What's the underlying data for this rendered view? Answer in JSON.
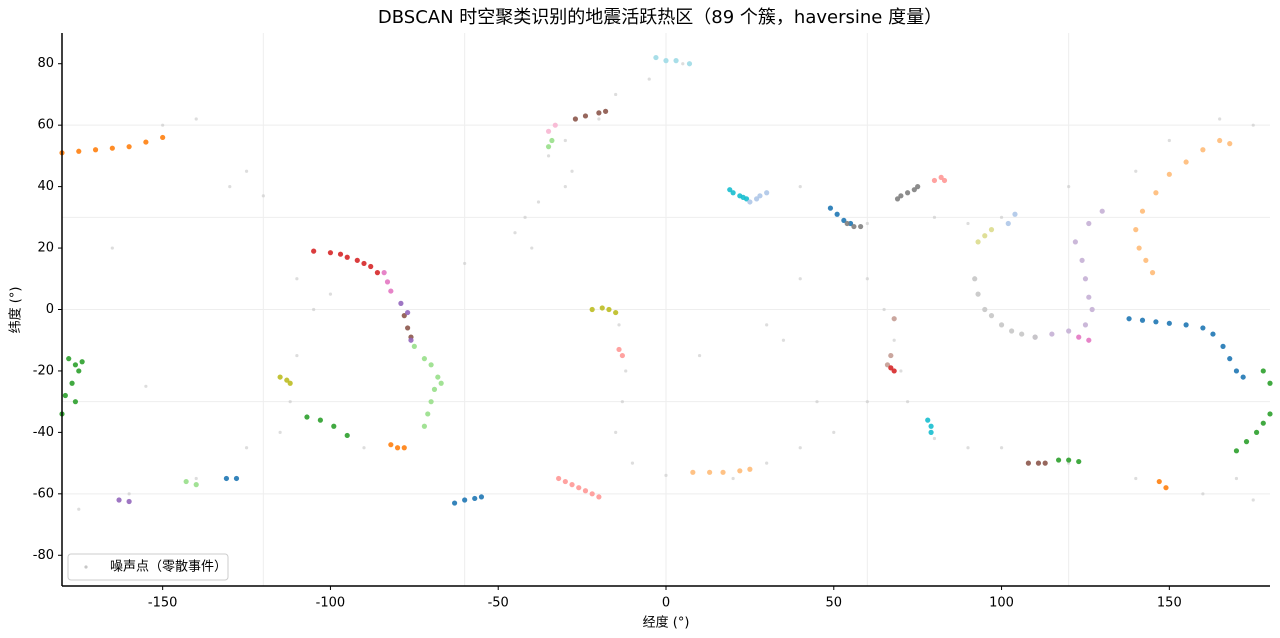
{
  "chart_data": {
    "type": "scatter",
    "title": "DBSCAN 时空聚类识别的地震活跃热区（89 个簇，haversine 度量）",
    "x_label": "经度 (°)",
    "y_label": "纬度 (°)",
    "xlim": [
      -180,
      180
    ],
    "ylim": [
      -90,
      90
    ],
    "xticks": [
      -150,
      -100,
      -50,
      0,
      50,
      100,
      150
    ],
    "yticks": [
      -80,
      -60,
      -40,
      -20,
      0,
      20,
      40,
      60,
      80
    ],
    "xgrid": [
      -120,
      -60,
      0,
      60,
      120
    ],
    "ygrid": [
      -60,
      -30,
      0,
      30,
      60
    ],
    "legend": "lower left",
    "series": [
      {
        "name": "噪声点（零散事件）",
        "color": "#c7c7c7",
        "x": [
          -40,
          -45,
          -42,
          -38,
          -30,
          -28,
          -35,
          -30,
          -20,
          -15,
          -5,
          5,
          -14,
          -12,
          -13,
          -15,
          -10,
          0,
          20,
          -110,
          -105,
          -110,
          -112,
          -115,
          -125,
          -140,
          -160,
          -175,
          -130,
          -125,
          -150,
          -140,
          -120,
          60,
          65,
          68,
          70,
          72,
          80,
          90,
          100,
          120,
          140,
          160,
          170,
          60,
          50,
          40,
          30,
          100,
          90,
          80,
          60,
          40,
          120,
          140,
          150,
          165,
          175,
          30,
          35,
          40,
          175,
          -90,
          -100,
          -165,
          -155,
          45,
          10,
          -60
        ],
        "y": [
          20,
          25,
          30,
          35,
          40,
          45,
          50,
          55,
          62,
          70,
          75,
          80,
          -5,
          -20,
          -30,
          -40,
          -50,
          -54,
          -55,
          10,
          0,
          -15,
          -30,
          -40,
          -45,
          -55,
          -60,
          -65,
          40,
          45,
          60,
          62,
          37,
          10,
          0,
          -10,
          -20,
          -30,
          -42,
          -45,
          -45,
          -50,
          -55,
          -60,
          -55,
          -30,
          -40,
          -45,
          -50,
          30,
          28,
          30,
          28,
          40,
          40,
          45,
          55,
          62,
          60,
          -5,
          -10,
          10,
          -62,
          -45,
          5,
          20,
          -25,
          -30,
          -15,
          15
        ]
      },
      {
        "color": "#ff7f0e",
        "x": [
          -180,
          -175,
          -170,
          -165,
          -160,
          -155,
          -150
        ],
        "y": [
          51,
          51.5,
          52,
          52.5,
          53,
          54.5,
          56
        ]
      },
      {
        "color": "#2ca02c",
        "x": [
          -178,
          -176,
          -175,
          -177,
          -179,
          -174,
          -180,
          -176
        ],
        "y": [
          -16,
          -18,
          -20,
          -24,
          -28,
          -17,
          -34,
          -30
        ]
      },
      {
        "color": "#d62728",
        "x": [
          -105,
          -100,
          -97,
          -95,
          -92,
          -90,
          -88,
          -86
        ],
        "y": [
          19,
          18.5,
          18,
          17,
          16,
          15,
          14,
          12
        ]
      },
      {
        "color": "#98df8a",
        "x": [
          -75,
          -72,
          -70,
          -68,
          -69,
          -70,
          -71,
          -72,
          -67
        ],
        "y": [
          -12,
          -16,
          -18,
          -22,
          -26,
          -30,
          -34,
          -38,
          -24
        ]
      },
      {
        "color": "#1f77b4",
        "x": [
          138,
          142,
          146,
          150,
          155,
          160,
          163,
          166,
          168,
          170,
          172
        ],
        "y": [
          -3,
          -3.5,
          -4,
          -4.5,
          -5,
          -6,
          -8,
          -12,
          -16,
          -20,
          -22
        ]
      },
      {
        "color": "#ffbb78",
        "x": [
          145,
          143,
          141,
          140,
          142,
          146,
          150,
          155,
          160,
          165,
          168
        ],
        "y": [
          12,
          16,
          20,
          26,
          32,
          38,
          44,
          48,
          52,
          55,
          54
        ]
      },
      {
        "color": "#c5b0d5",
        "x": [
          130,
          126,
          122,
          124,
          125,
          126,
          127,
          125,
          120,
          115,
          110
        ],
        "y": [
          32,
          28,
          22,
          16,
          10,
          4,
          0,
          -5,
          -7,
          -8,
          -9
        ]
      },
      {
        "color": "#c7c7c7",
        "x": [
          92,
          93,
          95,
          97,
          100,
          103,
          106,
          110
        ],
        "y": [
          10,
          5,
          0,
          -2,
          -5,
          -7,
          -8,
          -9
        ]
      },
      {
        "color": "#7f7f7f",
        "x": [
          69,
          70,
          72,
          74,
          75
        ],
        "y": [
          36,
          37,
          38,
          39,
          40
        ]
      },
      {
        "color": "#17becf",
        "x": [
          19,
          20,
          22,
          23,
          24
        ],
        "y": [
          39,
          38,
          37,
          36.5,
          36
        ]
      },
      {
        "color": "#aec7e8",
        "x": [
          25,
          27,
          28,
          30
        ],
        "y": [
          35,
          36,
          37,
          38
        ]
      },
      {
        "color": "#1f77b4",
        "x": [
          49,
          51,
          53,
          55
        ],
        "y": [
          33,
          31,
          29,
          28
        ]
      },
      {
        "color": "#7f7f7f",
        "x": [
          54,
          56,
          58
        ],
        "y": [
          28,
          27,
          27
        ]
      },
      {
        "color": "#ff9896",
        "x": [
          -32,
          -30,
          -28,
          -26,
          -24,
          -22,
          -20
        ],
        "y": [
          -55,
          -56,
          -57,
          -58,
          -59,
          -60,
          -61
        ]
      },
      {
        "color": "#1f77b4",
        "x": [
          -63,
          -60,
          -57,
          -55
        ],
        "y": [
          -63,
          -62,
          -61.5,
          -61
        ]
      },
      {
        "color": "#2ca02c",
        "x": [
          170,
          173,
          176,
          178,
          180
        ],
        "y": [
          -46,
          -43,
          -40,
          -37,
          -34
        ]
      },
      {
        "color": "#2ca02c",
        "x": [
          178,
          180
        ],
        "y": [
          -20,
          -24
        ]
      },
      {
        "color": "#8c564b",
        "x": [
          108,
          111,
          113
        ],
        "y": [
          -50,
          -50,
          -50
        ]
      },
      {
        "color": "#2ca02c",
        "x": [
          117,
          120,
          123
        ],
        "y": [
          -49,
          -49,
          -49.5
        ]
      },
      {
        "color": "#bcbd22",
        "x": [
          -22,
          -19,
          -17,
          -15
        ],
        "y": [
          0,
          0.5,
          0,
          -1
        ]
      },
      {
        "color": "#ff9896",
        "x": [
          -14,
          -13
        ],
        "y": [
          -13,
          -15
        ]
      },
      {
        "color": "#e377c2",
        "x": [
          -84,
          -83,
          -82
        ],
        "y": [
          12,
          9,
          6
        ]
      },
      {
        "color": "#bcbd22",
        "x": [
          -115,
          -113,
          -112
        ],
        "y": [
          -22,
          -23,
          -24
        ]
      },
      {
        "color": "#2ca02c",
        "x": [
          -107,
          -103,
          -99,
          -95
        ],
        "y": [
          -35,
          -36,
          -38,
          -41
        ]
      },
      {
        "color": "#ff7f0e",
        "x": [
          -82,
          -80,
          -78
        ],
        "y": [
          -44,
          -45,
          -45
        ]
      },
      {
        "color": "#98df8a",
        "x": [
          -35,
          -34
        ],
        "y": [
          53,
          55
        ]
      },
      {
        "color": "#8c564b",
        "x": [
          -27,
          -24,
          -20,
          -18
        ],
        "y": [
          62,
          63,
          64,
          64.5
        ]
      },
      {
        "color": "#f7b6d2",
        "x": [
          -35,
          -33
        ],
        "y": [
          58,
          60
        ]
      },
      {
        "color": "#9edae5",
        "x": [
          -3,
          0,
          3,
          7
        ],
        "y": [
          82,
          81,
          81,
          80
        ]
      },
      {
        "color": "#ffbb78",
        "x": [
          8,
          13,
          17,
          22,
          25
        ],
        "y": [
          -53,
          -53,
          -53,
          -52.5,
          -52
        ]
      },
      {
        "color": "#17becf",
        "x": [
          78,
          79,
          79
        ],
        "y": [
          -36,
          -38,
          -40
        ]
      },
      {
        "color": "#8c564b",
        "x": [
          -78,
          -77,
          -76
        ],
        "y": [
          -2,
          -6,
          -9
        ]
      },
      {
        "color": "#9467bd",
        "x": [
          -79,
          -77,
          -76
        ],
        "y": [
          2,
          -1,
          -10
        ]
      },
      {
        "color": "#c49c94",
        "x": [
          68,
          67,
          66
        ],
        "y": [
          -3,
          -15,
          -18
        ]
      },
      {
        "color": "#d62728",
        "x": [
          67,
          68
        ],
        "y": [
          -19,
          -20
        ]
      },
      {
        "color": "#dbdb8d",
        "x": [
          93,
          95,
          97
        ],
        "y": [
          22,
          24,
          26
        ]
      },
      {
        "color": "#9467bd",
        "x": [
          -163,
          -160
        ],
        "y": [
          -62,
          -62.5
        ]
      },
      {
        "color": "#98df8a",
        "x": [
          -143,
          -140
        ],
        "y": [
          -56,
          -57
        ]
      },
      {
        "color": "#1f77b4",
        "x": [
          -131,
          -128
        ],
        "y": [
          -55,
          -55
        ]
      },
      {
        "color": "#ff9896",
        "x": [
          80,
          82,
          83
        ],
        "y": [
          42,
          43,
          42
        ]
      },
      {
        "color": "#aec7e8",
        "x": [
          102,
          104
        ],
        "y": [
          28,
          31
        ]
      },
      {
        "color": "#ff7f0e",
        "x": [
          147,
          149
        ],
        "y": [
          -56,
          -58
        ]
      },
      {
        "color": "#e377c2",
        "x": [
          123,
          126
        ],
        "y": [
          -9,
          -10
        ]
      }
    ]
  }
}
